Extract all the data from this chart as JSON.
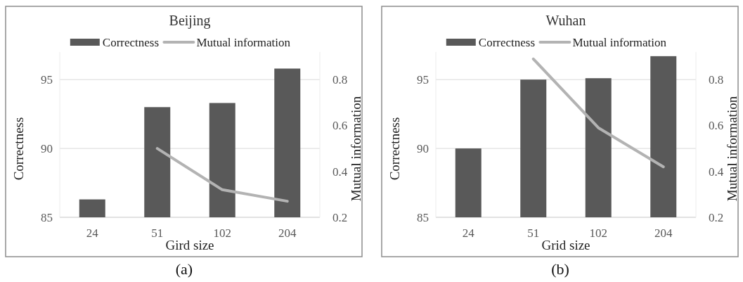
{
  "chart_data": [
    {
      "type": "bar",
      "title": "Beijing",
      "xlabel": "Gird size",
      "ylabel": "Correctness",
      "y2label": "Mutual information",
      "categories": [
        "24",
        "51",
        "102",
        "204"
      ],
      "series": [
        {
          "name": "Correctness",
          "color": "#595959",
          "values": [
            86.3,
            93.0,
            93.3,
            95.8
          ]
        },
        {
          "name": "Mutual information",
          "type": "line",
          "axis": "y2",
          "color": "#b3b3b3",
          "values": [
            null,
            0.5,
            0.32,
            0.27
          ]
        }
      ],
      "ylim": [
        85,
        97
      ],
      "yticks": [
        85,
        90,
        95
      ],
      "y2lim": [
        0.2,
        0.92
      ],
      "y2ticks": [
        {
          "value": 0.2,
          "label": "0.2"
        },
        {
          "value": 0.4,
          "label": "0.4"
        },
        {
          "value": 0.6,
          "label": "0.6"
        },
        {
          "value": 0.8,
          "label": "0.8"
        }
      ],
      "grid": "y",
      "legend": "top",
      "annotations": [
        "(a)"
      ]
    },
    {
      "type": "bar",
      "title": "Wuhan",
      "xlabel": "Grid size",
      "ylabel": "Correctness",
      "y2label": "Mutual information",
      "categories": [
        "24",
        "51",
        "102",
        "204"
      ],
      "series": [
        {
          "name": "Correctness",
          "color": "#595959",
          "values": [
            90.0,
            95.0,
            95.1,
            96.7
          ]
        },
        {
          "name": "Mutual information",
          "type": "line",
          "axis": "y2",
          "color": "#b3b3b3",
          "values": [
            null,
            0.89,
            0.59,
            0.42
          ]
        }
      ],
      "ylim": [
        85,
        97
      ],
      "yticks": [
        85,
        90,
        95
      ],
      "y2lim": [
        0.2,
        0.92
      ],
      "y2ticks": [
        {
          "value": 0.2,
          "label": "0.2"
        },
        {
          "value": 0.4,
          "label": "0.4"
        },
        {
          "value": 0.6,
          "label": "0.6"
        },
        {
          "value": 0.8,
          "label": "0.8"
        }
      ],
      "grid": "y",
      "legend": "top",
      "annotations": [
        "(b)"
      ]
    }
  ]
}
